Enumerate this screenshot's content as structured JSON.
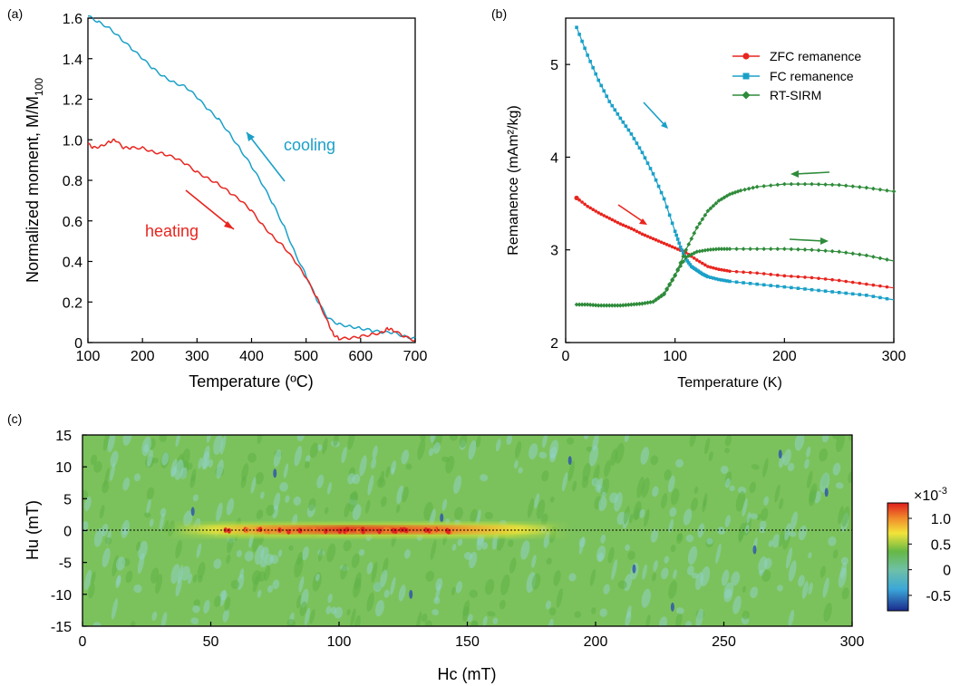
{
  "panel_labels": {
    "a": "(a)",
    "b": "(b)",
    "c": "(c)"
  },
  "colors": {
    "red": "#e8251f",
    "cyan": "#1aa0c8",
    "green": "#2e8b3a",
    "axis": "#000000"
  },
  "chart_data": [
    {
      "panel": "a",
      "type": "line",
      "xlabel": "Temperature (ºC)",
      "ylabel": "Normalized moment, M/M",
      "ylabel_sub": "100",
      "xlim": [
        100,
        700
      ],
      "ylim": [
        0,
        1.6
      ],
      "xticks": [
        "100",
        "200",
        "300",
        "400",
        "500",
        "600",
        "700"
      ],
      "yticks": [
        "0",
        "0.2",
        "0.4",
        "0.6",
        "0.8",
        "1.0",
        "1.2",
        "1.4",
        "1.6"
      ],
      "annotations": {
        "cooling": "cooling",
        "heating": "heating"
      },
      "series": [
        {
          "key": "cooling",
          "color": "#1aa0c8",
          "x": [
            100,
            120,
            140,
            160,
            180,
            200,
            220,
            240,
            260,
            280,
            300,
            320,
            340,
            360,
            380,
            400,
            420,
            440,
            460,
            480,
            500,
            520,
            540,
            560,
            580,
            600,
            620,
            640,
            660,
            680,
            700
          ],
          "y": [
            1.61,
            1.58,
            1.55,
            1.5,
            1.45,
            1.4,
            1.35,
            1.31,
            1.28,
            1.26,
            1.21,
            1.15,
            1.1,
            1.03,
            0.95,
            0.87,
            0.78,
            0.68,
            0.57,
            0.44,
            0.33,
            0.21,
            0.12,
            0.09,
            0.08,
            0.07,
            0.06,
            0.05,
            0.05,
            0.03,
            0.02
          ]
        },
        {
          "key": "heating",
          "color": "#e8251f",
          "x": [
            100,
            110,
            125,
            140,
            150,
            165,
            180,
            200,
            220,
            240,
            260,
            280,
            300,
            320,
            340,
            360,
            380,
            400,
            420,
            440,
            460,
            480,
            500,
            520,
            540,
            550,
            560,
            580,
            600,
            620,
            640,
            650,
            660,
            680,
            700
          ],
          "y": [
            0.98,
            0.96,
            0.97,
            0.99,
            1.0,
            0.96,
            0.96,
            0.96,
            0.94,
            0.93,
            0.91,
            0.88,
            0.84,
            0.81,
            0.78,
            0.74,
            0.7,
            0.65,
            0.58,
            0.52,
            0.47,
            0.4,
            0.32,
            0.22,
            0.1,
            0.04,
            0.02,
            0.02,
            0.03,
            0.04,
            0.05,
            0.07,
            0.06,
            0.03,
            0.01
          ]
        }
      ]
    },
    {
      "panel": "b",
      "type": "line",
      "xlabel": "Temperature (K)",
      "ylabel": "Remanence (mAm²/kg)",
      "xlim": [
        0,
        300
      ],
      "ylim": [
        2,
        5.5
      ],
      "xticks": [
        "0",
        "100",
        "200",
        "300"
      ],
      "yticks": [
        "2",
        "3",
        "4",
        "5"
      ],
      "legend_position": "top-right",
      "series": [
        {
          "name": "ZFC remanence",
          "color": "#e8251f",
          "marker": "circle",
          "x": [
            10,
            20,
            30,
            40,
            50,
            60,
            70,
            80,
            90,
            100,
            110,
            120,
            130,
            140,
            150,
            175,
            200,
            225,
            250,
            275,
            300
          ],
          "y": [
            3.56,
            3.47,
            3.4,
            3.34,
            3.28,
            3.23,
            3.17,
            3.12,
            3.07,
            3.02,
            2.97,
            2.89,
            2.82,
            2.79,
            2.77,
            2.75,
            2.72,
            2.7,
            2.67,
            2.63,
            2.59
          ]
        },
        {
          "name": "FC remanence",
          "color": "#1aa0c8",
          "marker": "square",
          "x": [
            10,
            20,
            30,
            40,
            50,
            60,
            70,
            80,
            90,
            100,
            105,
            110,
            115,
            120,
            125,
            130,
            140,
            150,
            175,
            200,
            225,
            250,
            275,
            300
          ],
          "y": [
            5.4,
            5.1,
            4.83,
            4.6,
            4.42,
            4.25,
            4.05,
            3.82,
            3.55,
            3.2,
            3.03,
            2.9,
            2.82,
            2.78,
            2.74,
            2.71,
            2.68,
            2.66,
            2.63,
            2.6,
            2.57,
            2.54,
            2.51,
            2.46
          ]
        },
        {
          "name": "RT-SIRM",
          "color": "#2e8b3a",
          "marker": "diamond",
          "segment": "cooling",
          "x": [
            300,
            275,
            250,
            225,
            200,
            175,
            160,
            150,
            140,
            130,
            120,
            110,
            100,
            90,
            80,
            70,
            60,
            50,
            40,
            30,
            20,
            10
          ],
          "y": [
            3.63,
            3.67,
            3.7,
            3.71,
            3.71,
            3.68,
            3.64,
            3.6,
            3.53,
            3.42,
            3.24,
            3.0,
            2.72,
            2.52,
            2.44,
            2.42,
            2.41,
            2.4,
            2.4,
            2.4,
            2.41,
            2.41
          ]
        },
        {
          "name": "RT-SIRM",
          "color": "#2e8b3a",
          "marker": "diamond",
          "segment": "warming",
          "x": [
            10,
            20,
            30,
            40,
            50,
            60,
            70,
            80,
            90,
            100,
            110,
            120,
            130,
            140,
            150,
            175,
            200,
            225,
            250,
            275,
            300
          ],
          "y": [
            2.41,
            2.41,
            2.4,
            2.4,
            2.4,
            2.41,
            2.42,
            2.44,
            2.53,
            2.73,
            2.92,
            2.98,
            3.0,
            3.01,
            3.01,
            3.01,
            3.01,
            3.0,
            2.98,
            2.94,
            2.88
          ]
        }
      ]
    },
    {
      "panel": "c",
      "type": "heatmap",
      "xlabel": "Hc (mT)",
      "ylabel": "Hu (mT)",
      "xlim": [
        0,
        300
      ],
      "ylim": [
        -15,
        15
      ],
      "xticks": [
        "0",
        "50",
        "100",
        "150",
        "200",
        "250",
        "300"
      ],
      "yticks": [
        "-15",
        "-10",
        "-5",
        "0",
        "5",
        "10",
        "15"
      ],
      "colorbar_scale": "×10",
      "colorbar_exponent": "-3",
      "colorbar_ticks": [
        "1.0",
        "0.5",
        "0",
        "-0.5"
      ],
      "colorbar_range": [
        -0.8,
        1.3
      ],
      "ridge": {
        "hu": 0,
        "hc_range": [
          35,
          180
        ],
        "peak_hc": 100,
        "peak_value": 1.2
      },
      "background_value": 0.35
    }
  ]
}
